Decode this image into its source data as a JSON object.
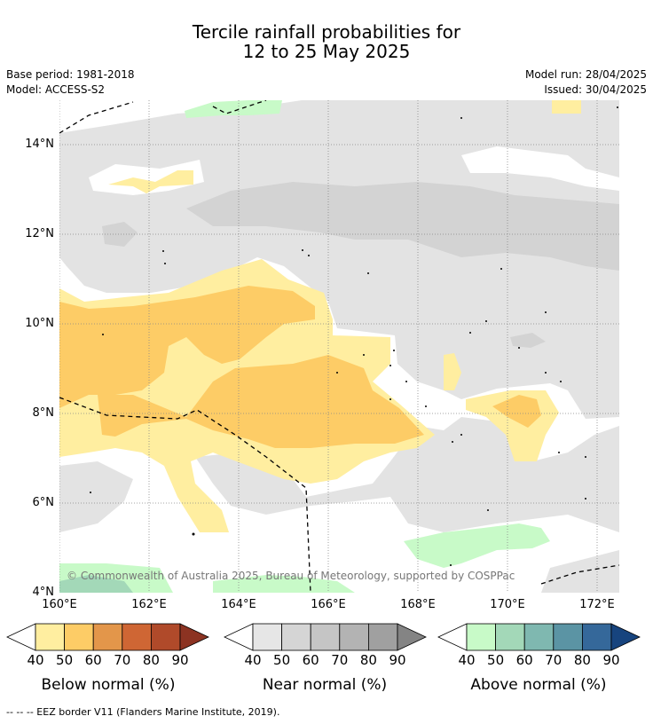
{
  "title": {
    "line1": "Tercile rainfall probabilities for",
    "line2": "12 to 25 May 2025"
  },
  "meta": {
    "base_period": "Base period: 1981-2018",
    "model": "Model: ACCESS-S2",
    "model_run": "Model run: 28/04/2025",
    "issued": "Issued: 30/04/2025"
  },
  "map": {
    "lat_labels": [
      "14°N",
      "12°N",
      "10°N",
      "8°N",
      "6°N",
      "4°N"
    ],
    "lon_labels": [
      "160°E",
      "162°E",
      "164°E",
      "166°E",
      "168°E",
      "170°E",
      "172°E"
    ],
    "lat_range": [
      4,
      15.0
    ],
    "lon_range": [
      160,
      172.5
    ],
    "copyright": "© Commonwealth of Australia 2025, Bureau of Meteorology, supported by COSPPac"
  },
  "colorbars": [
    {
      "title": "Below normal (%)",
      "ticks": [
        "40",
        "50",
        "60",
        "70",
        "80",
        "90"
      ],
      "colors": [
        "#ffeea0",
        "#fdcc66",
        "#e3964a",
        "#cf6634",
        "#b04a2a",
        "#8c3322"
      ]
    },
    {
      "title": "Near normal (%)",
      "ticks": [
        "40",
        "50",
        "60",
        "70",
        "80",
        "90"
      ],
      "colors": [
        "#e6e6e6",
        "#d5d5d5",
        "#c5c5c5",
        "#b3b3b3",
        "#a0a0a0",
        "#848484"
      ]
    },
    {
      "title": "Above normal (%)",
      "ticks": [
        "40",
        "50",
        "60",
        "70",
        "80",
        "90"
      ],
      "colors": [
        "#c8fac8",
        "#a3d8b8",
        "#7fb8b0",
        "#5b94a4",
        "#35689a",
        "#17447e"
      ]
    }
  ],
  "footnote": "-- -- -- EEZ border V11 (Flanders Marine Institute, 2019)."
}
